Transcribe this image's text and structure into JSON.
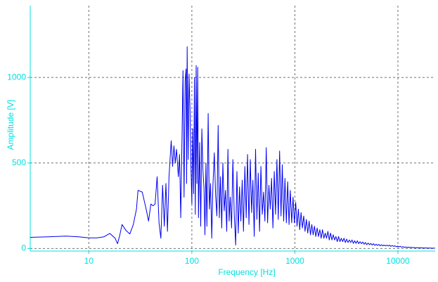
{
  "chart_data": {
    "type": "line",
    "x_scale": "log",
    "x_range": [
      2.7,
      23000
    ],
    "y_range": [
      -15,
      1420
    ],
    "xlabel": "Frequency [Hz]",
    "ylabel": "Amplitude [V]",
    "x_ticks": [
      {
        "value": 10,
        "label": "10"
      },
      {
        "value": 100,
        "label": "100"
      },
      {
        "value": 1000,
        "label": "1000"
      },
      {
        "value": 10000,
        "label": "10000"
      }
    ],
    "y_ticks": [
      {
        "value": 0,
        "label": "0"
      },
      {
        "value": 500,
        "label": "500"
      },
      {
        "value": 1000,
        "label": "1000"
      }
    ],
    "grid": true,
    "grid_style": "dashed",
    "colors": {
      "axis": "#00e0e0",
      "line": "#0000ee",
      "grid": "#707070",
      "background": "#ffffff"
    },
    "series": [
      {
        "values": [
          [
            2.7,
            65
          ],
          [
            4,
            68
          ],
          [
            6,
            72
          ],
          [
            8,
            68
          ],
          [
            10,
            62
          ],
          [
            12,
            62
          ],
          [
            14,
            68
          ],
          [
            16,
            88
          ],
          [
            18,
            60
          ],
          [
            19,
            28
          ],
          [
            20,
            80
          ],
          [
            21,
            140
          ],
          [
            23,
            105
          ],
          [
            25,
            85
          ],
          [
            27,
            140
          ],
          [
            29,
            230
          ],
          [
            30,
            340
          ],
          [
            33,
            330
          ],
          [
            36,
            230
          ],
          [
            38,
            160
          ],
          [
            40,
            260
          ],
          [
            42,
            250
          ],
          [
            44,
            260
          ],
          [
            46,
            420
          ],
          [
            48,
            150
          ],
          [
            50,
            60
          ],
          [
            52,
            370
          ],
          [
            54,
            130
          ],
          [
            56,
            380
          ],
          [
            58,
            100
          ],
          [
            60,
            420
          ],
          [
            63,
            630
          ],
          [
            65,
            480
          ],
          [
            67,
            600
          ],
          [
            69,
            500
          ],
          [
            71,
            580
          ],
          [
            74,
            420
          ],
          [
            76,
            550
          ],
          [
            78,
            180
          ],
          [
            80,
            600
          ],
          [
            82,
            1040
          ],
          [
            84,
            300
          ],
          [
            86,
            980
          ],
          [
            88,
            1050
          ],
          [
            89,
            380
          ],
          [
            90,
            1180
          ],
          [
            92,
            520
          ],
          [
            94,
            1020
          ],
          [
            96,
            800
          ],
          [
            98,
            480
          ],
          [
            100,
            260
          ],
          [
            102,
            700
          ],
          [
            104,
            320
          ],
          [
            106,
            1000
          ],
          [
            108,
            200
          ],
          [
            110,
            1070
          ],
          [
            112,
            380
          ],
          [
            114,
            1060
          ],
          [
            116,
            180
          ],
          [
            119,
            620
          ],
          [
            122,
            130
          ],
          [
            125,
            700
          ],
          [
            128,
            460
          ],
          [
            131,
            360
          ],
          [
            134,
            80
          ],
          [
            137,
            500
          ],
          [
            140,
            130
          ],
          [
            144,
            790
          ],
          [
            148,
            230
          ],
          [
            152,
            380
          ],
          [
            156,
            60
          ],
          [
            160,
            360
          ],
          [
            165,
            560
          ],
          [
            170,
            310
          ],
          [
            175,
            190
          ],
          [
            180,
            720
          ],
          [
            185,
            180
          ],
          [
            190,
            420
          ],
          [
            195,
            120
          ],
          [
            200,
            500
          ],
          [
            206,
            220
          ],
          [
            212,
            340
          ],
          [
            218,
            100
          ],
          [
            224,
            580
          ],
          [
            230,
            160
          ],
          [
            236,
            300
          ],
          [
            243,
            120
          ],
          [
            250,
            520
          ],
          [
            258,
            200
          ],
          [
            266,
            20
          ],
          [
            274,
            450
          ],
          [
            282,
            90
          ],
          [
            290,
            360
          ],
          [
            299,
            160
          ],
          [
            308,
            400
          ],
          [
            317,
            100
          ],
          [
            327,
            480
          ],
          [
            337,
            180
          ],
          [
            347,
            550
          ],
          [
            358,
            140
          ],
          [
            369,
            520
          ],
          [
            380,
            210
          ],
          [
            391,
            400
          ],
          [
            403,
            70
          ],
          [
            415,
            580
          ],
          [
            428,
            170
          ],
          [
            441,
            440
          ],
          [
            454,
            100
          ],
          [
            468,
            480
          ],
          [
            482,
            200
          ],
          [
            497,
            330
          ],
          [
            512,
            160
          ],
          [
            527,
            590
          ],
          [
            543,
            150
          ],
          [
            560,
            370
          ],
          [
            577,
            230
          ],
          [
            594,
            410
          ],
          [
            612,
            120
          ],
          [
            631,
            450
          ],
          [
            650,
            200
          ],
          [
            670,
            520
          ],
          [
            690,
            170
          ],
          [
            711,
            570
          ],
          [
            733,
            190
          ],
          [
            755,
            490
          ],
          [
            778,
            160
          ],
          [
            801,
            410
          ],
          [
            826,
            150
          ],
          [
            851,
            390
          ],
          [
            877,
            140
          ],
          [
            903,
            340
          ],
          [
            931,
            150
          ],
          [
            959,
            300
          ],
          [
            988,
            150
          ],
          [
            1018,
            270
          ],
          [
            1049,
            130
          ],
          [
            1081,
            230
          ],
          [
            1114,
            110
          ],
          [
            1148,
            210
          ],
          [
            1183,
            120
          ],
          [
            1219,
            190
          ],
          [
            1256,
            100
          ],
          [
            1294,
            170
          ],
          [
            1333,
            90
          ],
          [
            1374,
            160
          ],
          [
            1416,
            80
          ],
          [
            1459,
            140
          ],
          [
            1503,
            80
          ],
          [
            1549,
            130
          ],
          [
            1596,
            70
          ],
          [
            1645,
            120
          ],
          [
            1695,
            70
          ],
          [
            1746,
            110
          ],
          [
            1799,
            60
          ],
          [
            1854,
            110
          ],
          [
            1911,
            60
          ],
          [
            1969,
            90
          ],
          [
            2029,
            60
          ],
          [
            2090,
            100
          ],
          [
            2154,
            50
          ],
          [
            2220,
            90
          ],
          [
            2287,
            50
          ],
          [
            2357,
            80
          ],
          [
            2428,
            50
          ],
          [
            2502,
            70
          ],
          [
            2578,
            40
          ],
          [
            2657,
            70
          ],
          [
            2738,
            40
          ],
          [
            2821,
            60
          ],
          [
            2907,
            40
          ],
          [
            2995,
            60
          ],
          [
            3086,
            35
          ],
          [
            3180,
            55
          ],
          [
            3277,
            35
          ],
          [
            3377,
            50
          ],
          [
            3479,
            35
          ],
          [
            3585,
            50
          ],
          [
            3694,
            30
          ],
          [
            3807,
            45
          ],
          [
            3922,
            30
          ],
          [
            4042,
            45
          ],
          [
            4165,
            28
          ],
          [
            4291,
            40
          ],
          [
            4422,
            28
          ],
          [
            4557,
            38
          ],
          [
            4695,
            25
          ],
          [
            4838,
            35
          ],
          [
            4985,
            22
          ],
          [
            5137,
            32
          ],
          [
            5293,
            22
          ],
          [
            5454,
            30
          ],
          [
            5620,
            20
          ],
          [
            5791,
            28
          ],
          [
            5967,
            18
          ],
          [
            6149,
            25
          ],
          [
            6336,
            18
          ],
          [
            6529,
            24
          ],
          [
            6727,
            16
          ],
          [
            6932,
            22
          ],
          [
            7143,
            16
          ],
          [
            7360,
            20
          ],
          [
            7584,
            15
          ],
          [
            7815,
            20
          ],
          [
            8052,
            14
          ],
          [
            8297,
            20
          ],
          [
            8550,
            12
          ],
          [
            8810,
            18
          ],
          [
            9078,
            12
          ],
          [
            9354,
            16
          ],
          [
            9638,
            10
          ],
          [
            9932,
            14
          ],
          [
            10234,
            10
          ],
          [
            10545,
            12
          ],
          [
            10866,
            8
          ],
          [
            11196,
            10
          ],
          [
            11537,
            7
          ],
          [
            11888,
            9
          ],
          [
            12249,
            6
          ],
          [
            12622,
            8
          ],
          [
            13006,
            5
          ],
          [
            13401,
            7
          ],
          [
            13809,
            5
          ],
          [
            14229,
            6
          ],
          [
            14661,
            4
          ],
          [
            15107,
            5
          ],
          [
            15567,
            4
          ],
          [
            16040,
            5
          ],
          [
            16528,
            3
          ],
          [
            17030,
            4
          ],
          [
            17548,
            3
          ],
          [
            18082,
            3
          ],
          [
            18632,
            3
          ],
          [
            19198,
            3
          ],
          [
            19782,
            2
          ],
          [
            20384,
            3
          ],
          [
            21003,
            2
          ],
          [
            21642,
            2
          ],
          [
            22300,
            2
          ],
          [
            23000,
            2
          ]
        ]
      }
    ]
  }
}
